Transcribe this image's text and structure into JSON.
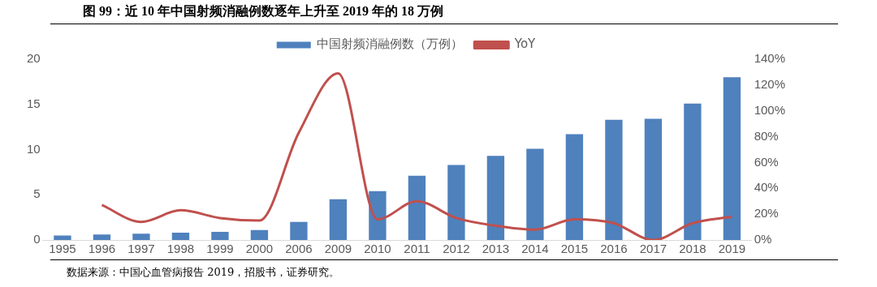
{
  "chart_data": {
    "type": "bar",
    "title": "图 99：近 10 年中国射频消融例数逐年上升至 2019 年的 18 万例",
    "categories": [
      "1995",
      "1996",
      "1997",
      "1998",
      "1999",
      "2000",
      "2006",
      "2009",
      "2010",
      "2011",
      "2012",
      "2013",
      "2014",
      "2015",
      "2016",
      "2017",
      "2018",
      "2019"
    ],
    "series": [
      {
        "name": "中国射频消融例数（万例）",
        "color": "#4f81bd",
        "values": [
          0.5,
          0.6,
          0.7,
          0.8,
          0.9,
          1.1,
          2.0,
          4.5,
          5.4,
          7.1,
          8.3,
          9.3,
          10.1,
          11.7,
          13.3,
          13.4,
          15.1,
          18.0
        ]
      },
      {
        "name": "YoY",
        "type": "line",
        "axis": "y2",
        "color": "#c0504d",
        "values": [
          null,
          27,
          14,
          23,
          17,
          15,
          83,
          129,
          16,
          30,
          17,
          11,
          8,
          16,
          13,
          0,
          13,
          18
        ]
      }
    ],
    "ylim": [
      0,
      20
    ],
    "yticks": [
      0,
      5,
      10,
      15,
      20
    ],
    "y2lim": [
      0,
      140
    ],
    "y2ticks": [
      {
        "value": 0,
        "label": "0%"
      },
      {
        "value": 20,
        "label": "20%"
      },
      {
        "value": 40,
        "label": "40%"
      },
      {
        "value": 60,
        "label": "60%"
      },
      {
        "value": 80,
        "label": "80%"
      },
      {
        "value": 100,
        "label": "100%"
      },
      {
        "value": 120,
        "label": "120%"
      },
      {
        "value": 140,
        "label": "140%"
      }
    ],
    "grid": false,
    "legend": "top",
    "marker": "none",
    "annotations": [
      "数据来源：中国心血管病报告 2019，招股书，证券研究。"
    ]
  }
}
